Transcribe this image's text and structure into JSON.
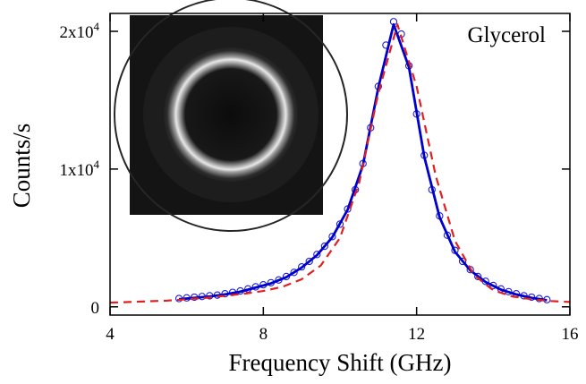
{
  "chart_data": {
    "type": "line",
    "xlabel": "Frequency Shift (GHz)",
    "ylabel": "Counts/s",
    "annotation": "Glycerol",
    "xlim": [
      4,
      16
    ],
    "xticks": [
      4,
      8,
      12,
      16
    ],
    "ylim": [
      -600,
      21300
    ],
    "yticks": [
      0,
      {
        "value": 10000,
        "label": "1x10^4"
      },
      {
        "value": 20000,
        "label": "2x10^4"
      }
    ],
    "series": [
      {
        "mode": "markers",
        "color": "#1f1fd6",
        "x": [
          5.8,
          6.0,
          6.2,
          6.4,
          6.6,
          6.8,
          7.0,
          7.2,
          7.4,
          7.6,
          7.8,
          8.0,
          8.2,
          8.4,
          8.6,
          8.8,
          9.0,
          9.2,
          9.4,
          9.6,
          9.8,
          10.0,
          10.2,
          10.4,
          10.6,
          10.8,
          11.0,
          11.2,
          11.4,
          11.6,
          11.8,
          12.0,
          12.2,
          12.4,
          12.6,
          12.8,
          13.0,
          13.2,
          13.4,
          13.6,
          13.8,
          14.0,
          14.2,
          14.4,
          14.6,
          14.8,
          15.0,
          15.2,
          15.4
        ],
        "values": [
          600,
          650,
          700,
          750,
          800,
          850,
          950,
          1050,
          1150,
          1300,
          1450,
          1600,
          1750,
          1950,
          2200,
          2500,
          2900,
          3300,
          3800,
          4400,
          5100,
          6000,
          7100,
          8500,
          10400,
          13000,
          16000,
          19000,
          20700,
          19800,
          17500,
          14000,
          11000,
          8500,
          6600,
          5200,
          4100,
          3300,
          2700,
          2200,
          1850,
          1550,
          1300,
          1100,
          950,
          800,
          700,
          600,
          520
        ]
      },
      {
        "mode": "line",
        "color": "#0000cc",
        "x": [
          5.8,
          6.2,
          6.6,
          7.0,
          7.4,
          7.8,
          8.2,
          8.6,
          9.0,
          9.4,
          9.8,
          10.2,
          10.6,
          11.0,
          11.4,
          11.8,
          12.2,
          12.6,
          13.0,
          13.4,
          13.8,
          14.2,
          14.6,
          15.0,
          15.4
        ],
        "values": [
          550,
          650,
          750,
          900,
          1100,
          1400,
          1700,
          2150,
          2850,
          3750,
          5050,
          7050,
          10300,
          15900,
          20500,
          17400,
          10900,
          6500,
          4000,
          2650,
          1800,
          1250,
          900,
          650,
          480
        ]
      },
      {
        "mode": "dashed",
        "color": "#e02020",
        "x": [
          4,
          4.5,
          5,
          5.5,
          6,
          6.5,
          7,
          7.5,
          8,
          8.5,
          9,
          9.5,
          10,
          10.5,
          11,
          11.5,
          12,
          12.5,
          13,
          13.5,
          14,
          14.5,
          15,
          15.5,
          16
        ],
        "values": [
          300,
          350,
          400,
          450,
          550,
          650,
          800,
          950,
          1150,
          1450,
          2000,
          3000,
          5000,
          9000,
          15500,
          20500,
          16000,
          9500,
          4800,
          2300,
          1200,
          750,
          550,
          420,
          350
        ]
      }
    ]
  }
}
